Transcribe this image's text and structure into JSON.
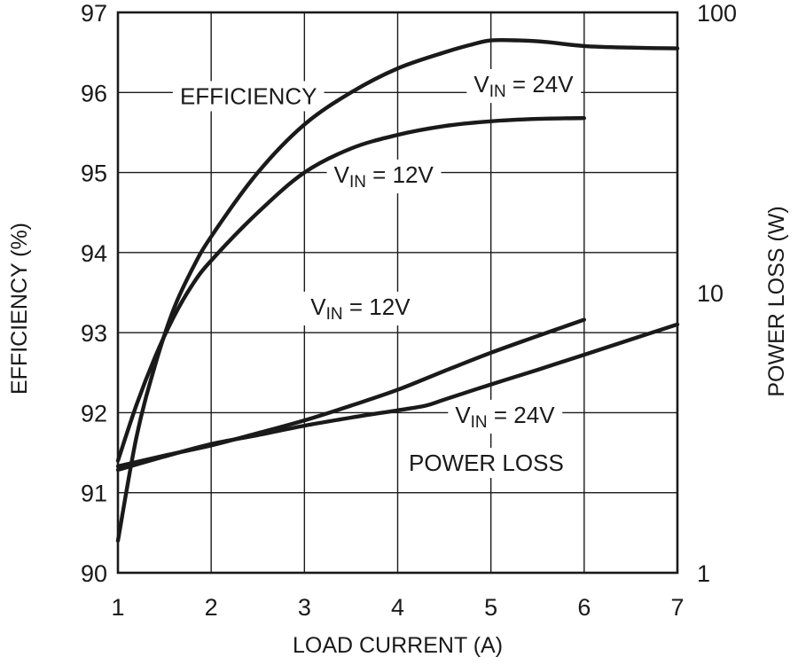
{
  "chart_data": {
    "type": "line",
    "xlabel": "LOAD CURRENT (A)",
    "ylabel": "EFFICIENCY (%)",
    "y2label": "POWER LOSS (W)",
    "xlim": [
      1,
      7
    ],
    "ylim": [
      90,
      97
    ],
    "y2lim": [
      1,
      100
    ],
    "y2scale": "log",
    "grid": true,
    "xticks": [
      "1",
      "2",
      "3",
      "4",
      "5",
      "6",
      "7"
    ],
    "yticks": [
      "90",
      "91",
      "92",
      "93",
      "94",
      "95",
      "96",
      "97"
    ],
    "y2ticks": [
      "1",
      "10",
      "100"
    ],
    "series": [
      {
        "name": "VIN = 24V",
        "group": "efficiency",
        "axis": "left",
        "points": [
          [
            1.0,
            90.4
          ],
          [
            1.2,
            91.7
          ],
          [
            1.4,
            92.6
          ],
          [
            1.6,
            93.3
          ],
          [
            1.8,
            93.8
          ],
          [
            2.0,
            94.2
          ],
          [
            2.5,
            95.0
          ],
          [
            3.0,
            95.6
          ],
          [
            3.5,
            96.0
          ],
          [
            4.0,
            96.3
          ],
          [
            4.5,
            96.5
          ],
          [
            4.8,
            96.6
          ],
          [
            5.0,
            96.65
          ],
          [
            5.3,
            96.65
          ],
          [
            5.6,
            96.63
          ],
          [
            6.0,
            96.58
          ],
          [
            6.5,
            96.56
          ],
          [
            7.0,
            96.55
          ]
        ]
      },
      {
        "name": "VIN = 12V",
        "group": "efficiency",
        "axis": "left",
        "points": [
          [
            1.0,
            91.4
          ],
          [
            1.2,
            92.1
          ],
          [
            1.4,
            92.7
          ],
          [
            1.6,
            93.2
          ],
          [
            1.8,
            93.6
          ],
          [
            2.0,
            93.9
          ],
          [
            2.5,
            94.5
          ],
          [
            3.0,
            95.0
          ],
          [
            3.5,
            95.3
          ],
          [
            4.0,
            95.47
          ],
          [
            4.5,
            95.58
          ],
          [
            5.0,
            95.64
          ],
          [
            5.5,
            95.67
          ],
          [
            6.0,
            95.68
          ]
        ]
      },
      {
        "name": "VIN = 12V",
        "group": "power loss",
        "axis": "right",
        "points": [
          [
            1.0,
            2.4
          ],
          [
            1.5,
            2.62
          ],
          [
            2.0,
            2.85
          ],
          [
            2.5,
            3.15
          ],
          [
            3.0,
            3.5
          ],
          [
            3.5,
            3.95
          ],
          [
            4.0,
            4.5
          ],
          [
            4.5,
            5.25
          ],
          [
            5.0,
            6.1
          ],
          [
            5.5,
            7.0
          ],
          [
            6.0,
            8.0
          ]
        ]
      },
      {
        "name": "VIN = 24V",
        "group": "power loss",
        "axis": "right",
        "points": [
          [
            1.0,
            2.33
          ],
          [
            1.5,
            2.6
          ],
          [
            2.0,
            2.88
          ],
          [
            2.5,
            3.1
          ],
          [
            3.0,
            3.35
          ],
          [
            3.5,
            3.58
          ],
          [
            4.0,
            3.8
          ],
          [
            4.3,
            3.95
          ],
          [
            4.5,
            4.15
          ],
          [
            5.0,
            4.7
          ],
          [
            5.5,
            5.3
          ],
          [
            6.0,
            6.0
          ],
          [
            6.5,
            6.8
          ],
          [
            7.0,
            7.7
          ]
        ]
      }
    ],
    "annotations": [
      {
        "text": "EFFICIENCY",
        "x": 2.4,
        "y": 95.93,
        "axis": "left"
      },
      {
        "text": "POWER LOSS",
        "x": 4.95,
        "y": 91.35,
        "axis": "left"
      }
    ],
    "series_labels": [
      {
        "main": "V",
        "sub": "IN",
        "rest": " = 24V",
        "x": 5.35,
        "y": 96.08,
        "axis": "left"
      },
      {
        "main": "V",
        "sub": "IN",
        "rest": " = 12V",
        "x": 3.85,
        "y": 94.95,
        "axis": "left"
      },
      {
        "main": "V",
        "sub": "IN",
        "rest": " = 12V",
        "x": 3.6,
        "y": 93.3,
        "axis": "left"
      },
      {
        "main": "V",
        "sub": "IN",
        "rest": " = 24V",
        "x": 5.15,
        "y": 91.95,
        "axis": "left"
      }
    ]
  }
}
